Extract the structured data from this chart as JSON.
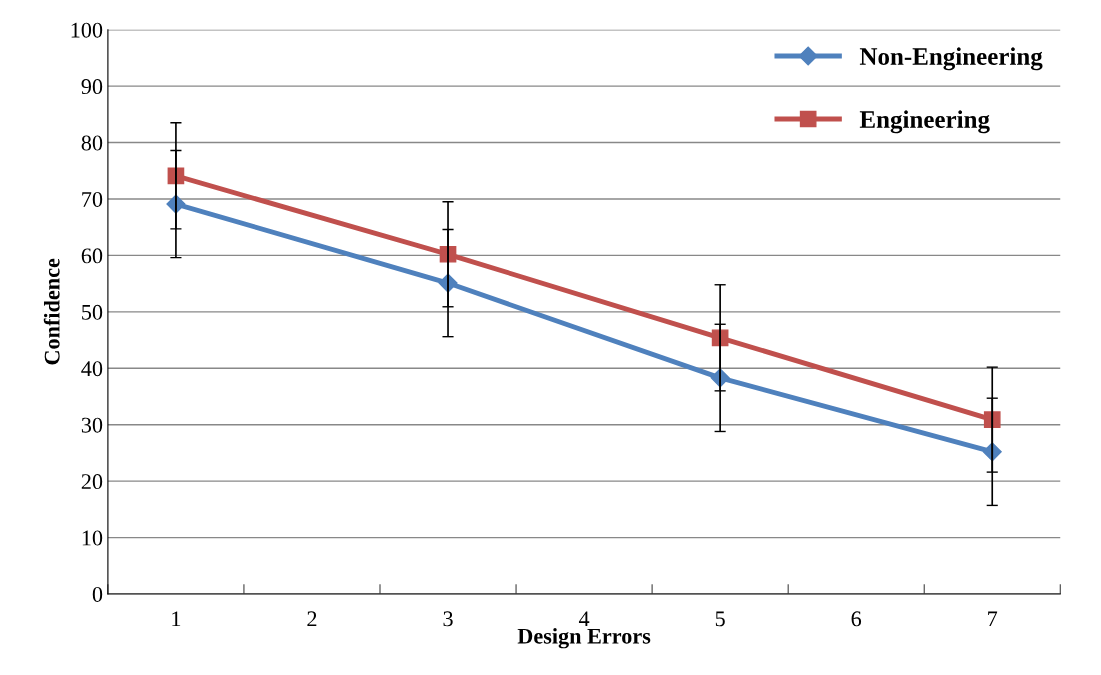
{
  "chart_data": {
    "type": "line",
    "xlabel": "Design Errors",
    "ylabel": "Confidence",
    "categories": [
      "1",
      "2",
      "3",
      "4",
      "5",
      "6",
      "7"
    ],
    "series": [
      {
        "name": "Non-Engineering",
        "color": "#4f81bd",
        "marker": "diamond",
        "values": [
          69.1,
          null,
          55.1,
          null,
          38.3,
          null,
          25.2
        ],
        "errors": [
          9.5,
          null,
          9.5,
          null,
          9.5,
          null,
          9.5
        ]
      },
      {
        "name": "Engineering",
        "color": "#c0504d",
        "marker": "square",
        "values": [
          74.1,
          null,
          60.2,
          null,
          45.4,
          null,
          30.9
        ],
        "errors": [
          9.4,
          null,
          9.3,
          null,
          9.4,
          null,
          9.3
        ]
      }
    ],
    "ylim": [
      0,
      100
    ],
    "yticks": [
      0,
      10,
      20,
      30,
      40,
      50,
      60,
      70,
      80,
      90,
      100
    ],
    "grid": "y",
    "legend": "top right"
  }
}
